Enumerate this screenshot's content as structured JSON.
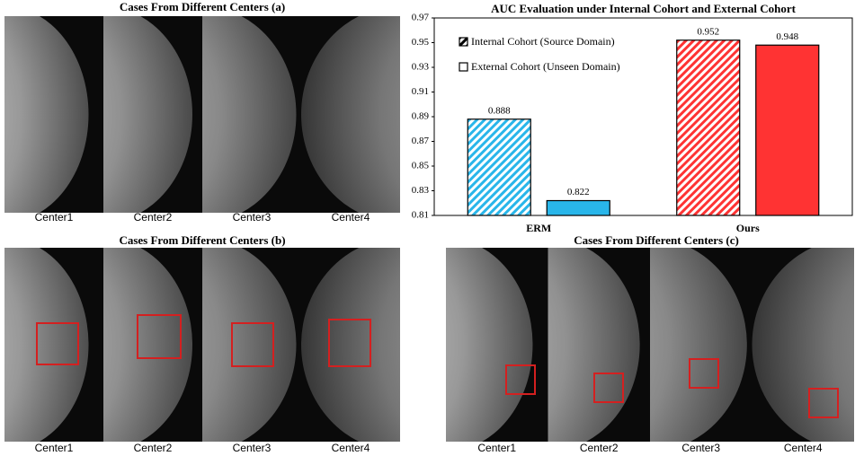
{
  "panels": [
    {
      "title": "Cases From Different Centers (a)",
      "labels": [
        "Center1",
        "Center2",
        "Center3",
        "Center4"
      ]
    },
    {
      "title": "Cases From Different Centers (b)",
      "labels": [
        "Center1",
        "Center2",
        "Center3",
        "Center4"
      ]
    },
    {
      "title": "Cases From Different Centers (c)",
      "labels": [
        "Center1",
        "Center2",
        "Center3",
        "Center4"
      ]
    }
  ],
  "chart_data": {
    "type": "bar",
    "title": "AUC Evaluation under Internal Cohort and External Cohort",
    "categories": [
      "ERM",
      "Ours"
    ],
    "category_colors": [
      "#29b6ea",
      "#ff3333"
    ],
    "series": [
      {
        "name": "Internal Cohort (Source Domain)",
        "hatch": true,
        "values": [
          0.888,
          0.952
        ]
      },
      {
        "name": "External Cohort (Unseen Domain)",
        "hatch": false,
        "values": [
          0.822,
          0.948
        ]
      }
    ],
    "ylim": [
      0.81,
      0.97
    ],
    "yticks": [
      0.81,
      0.83,
      0.85,
      0.87,
      0.89,
      0.91,
      0.93,
      0.95,
      0.97
    ],
    "legend": "upper left",
    "grid": false
  }
}
